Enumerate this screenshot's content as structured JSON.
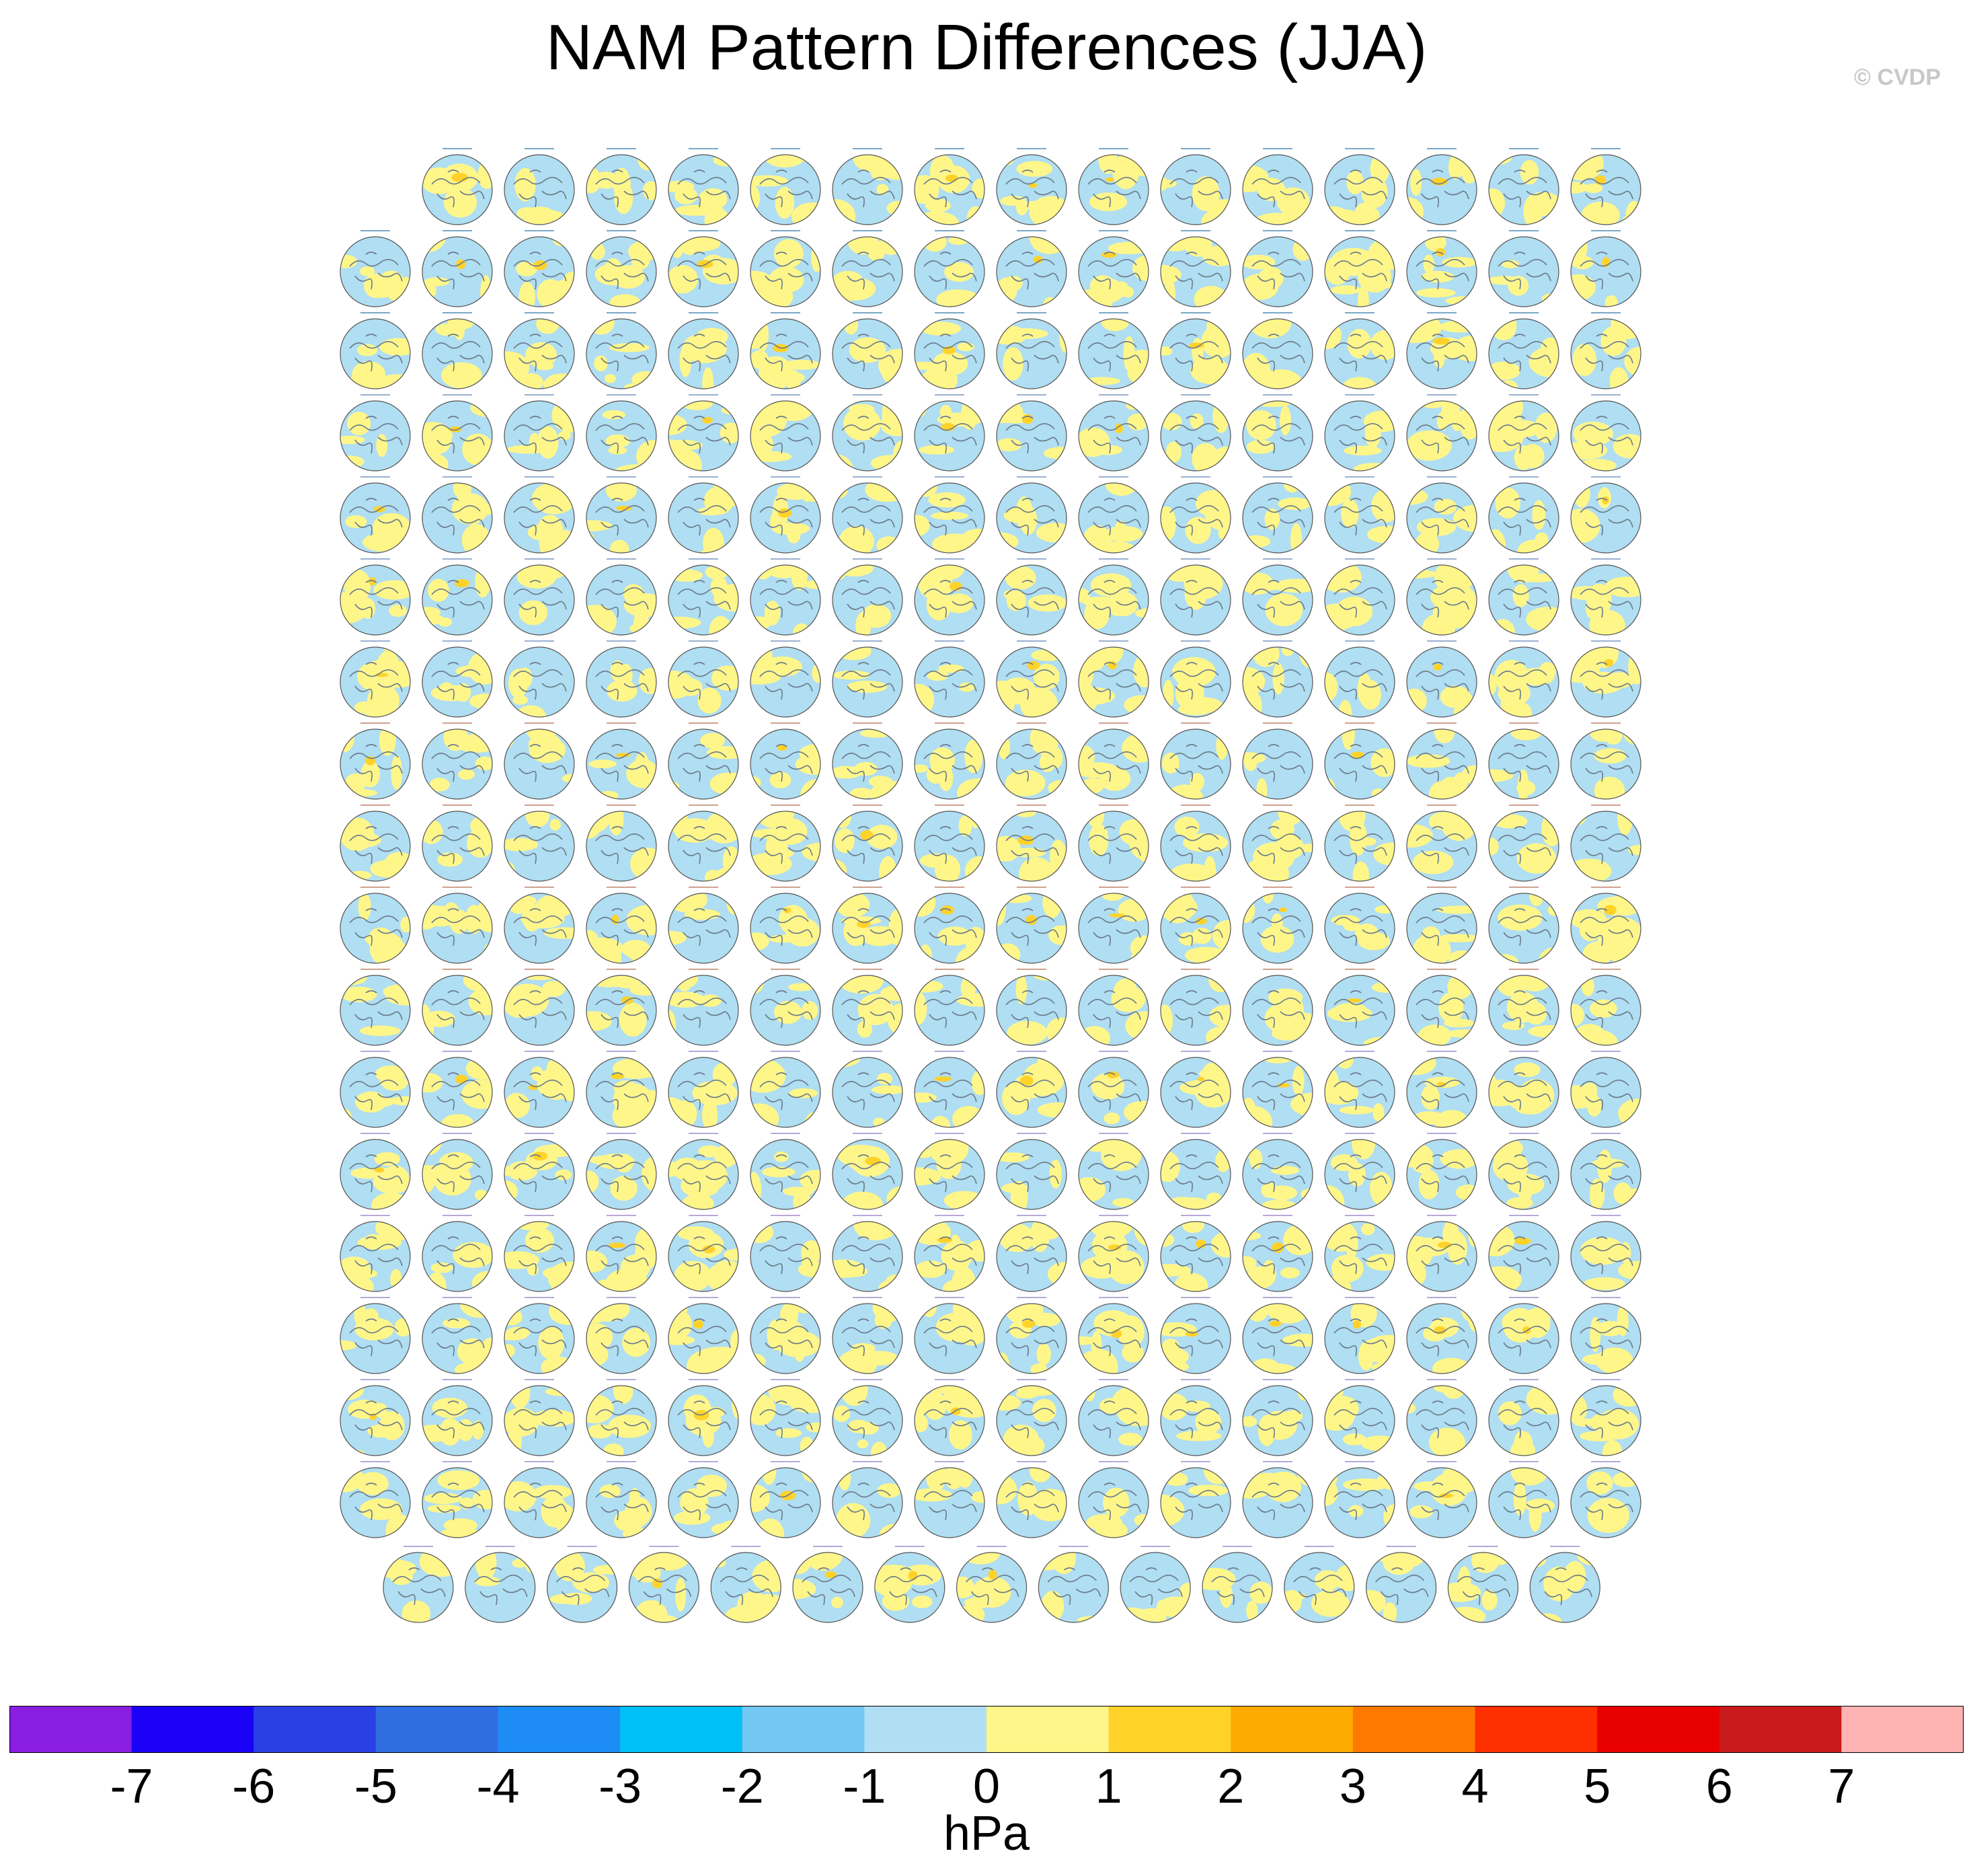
{
  "title": "NAM Pattern Differences (JJA)",
  "copyright": "© CVDP",
  "chart_data": {
    "type": "heatmap",
    "title": "NAM Pattern Differences (JJA)",
    "description_panels": "Grid of polar stereographic Northern Hemisphere map panels showing NAM pattern differences for many model simulations",
    "panel_rows": [
      15,
      16,
      16,
      16,
      16,
      16,
      16,
      16,
      16,
      16,
      16,
      16,
      16,
      16,
      16,
      16,
      16,
      15
    ],
    "colorbar": {
      "units": "hPa",
      "levels": [
        -7,
        -6,
        -5,
        -4,
        -3,
        -2,
        -1,
        0,
        1,
        2,
        3,
        4,
        5,
        6,
        7
      ],
      "tick_labels": [
        "-7",
        "-6",
        "-5",
        "-4",
        "-3",
        "-2",
        "-1",
        "0",
        "1",
        "2",
        "3",
        "4",
        "5",
        "6",
        "7"
      ],
      "colors": [
        "#8a1ee0",
        "#1a00f5",
        "#2a40e5",
        "#2f6ee0",
        "#1e8cf5",
        "#00c0f8",
        "#72c8f0",
        "#b0def2",
        "#fff68a",
        "#ffd22a",
        "#ffaa00",
        "#ff7a00",
        "#ff3000",
        "#e80000",
        "#c81a1a",
        "#ffb4b4"
      ]
    },
    "map_colors": {
      "ocean_negative": "#b0def2",
      "positive": "#fff68a",
      "strong_positive": "#ffd22a",
      "coast": "#6a7a8a"
    }
  }
}
